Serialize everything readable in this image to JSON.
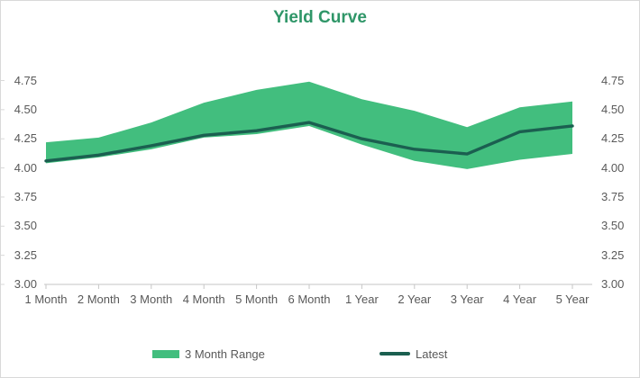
{
  "title": "Yield Curve",
  "colors": {
    "band": "#42BE7E",
    "line": "#1B5F50",
    "title": "#2F9668",
    "axis_text": "#595959",
    "axis_line": "#C6C6C6",
    "edge_tick": "#D9D9D9",
    "border": "#D9D9D9",
    "background": "#FFFFFF"
  },
  "chart_data": {
    "type": "area",
    "title": "Yield Curve",
    "categories": [
      "1 Month",
      "2 Month",
      "3 Month",
      "4 Month",
      "5 Month",
      "6 Month",
      "1 Year",
      "2 Year",
      "3 Year",
      "4 Year",
      "5 Year"
    ],
    "series": [
      {
        "name": "3 Month Range",
        "kind": "band",
        "low": [
          4.04,
          4.09,
          4.16,
          4.26,
          4.29,
          4.36,
          4.2,
          4.06,
          3.99,
          4.07,
          4.12
        ],
        "high": [
          4.22,
          4.26,
          4.39,
          4.56,
          4.67,
          4.74,
          4.59,
          4.49,
          4.35,
          4.52,
          4.57
        ]
      },
      {
        "name": "Latest",
        "kind": "line",
        "values": [
          4.06,
          4.11,
          4.19,
          4.28,
          4.32,
          4.39,
          4.25,
          4.16,
          4.12,
          4.31,
          4.36
        ]
      }
    ],
    "ylim": [
      3.0,
      4.75
    ],
    "y_ticks": [
      "4.75",
      "4.50",
      "4.25",
      "4.00",
      "3.75",
      "3.50",
      "3.25",
      "3.00"
    ],
    "y_axis_sides": "both",
    "grid": false,
    "legend_position": "bottom"
  },
  "legend": {
    "items": [
      {
        "label": "3 Month Range",
        "swatch": "area"
      },
      {
        "label": "Latest",
        "swatch": "line"
      }
    ]
  }
}
